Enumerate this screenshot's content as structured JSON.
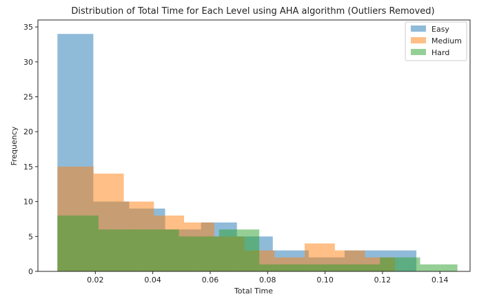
{
  "chart_data": {
    "type": "histogram",
    "title": "Distribution of Total Time for Each Level using AHA algorithm (Outliers Removed)",
    "xlabel": "Total Time",
    "ylabel": "Frequency",
    "xlim": [
      0.0,
      0.1505
    ],
    "ylim": [
      0,
      36
    ],
    "xticks": [
      0.02,
      0.04,
      0.06,
      0.08,
      0.1,
      0.12,
      0.14
    ],
    "xtick_labels": [
      "0.02",
      "0.04",
      "0.06",
      "0.08",
      "0.10",
      "0.12",
      "0.14"
    ],
    "yticks": [
      0,
      5,
      10,
      15,
      20,
      25,
      30,
      35
    ],
    "ytick_labels": [
      "0",
      "5",
      "10",
      "15",
      "20",
      "25",
      "30",
      "35"
    ],
    "legend_position": "top-right",
    "series": [
      {
        "name": "Easy",
        "color": "#1f77b4",
        "alpha": 0.5,
        "edges": [
          0.0068,
          0.0193,
          0.0318,
          0.0443,
          0.0568,
          0.0693,
          0.0818,
          0.0943,
          0.1068,
          0.1193,
          0.1318
        ],
        "counts": [
          34,
          10,
          9,
          6,
          7,
          5,
          3,
          2,
          3,
          3
        ]
      },
      {
        "name": "Medium",
        "color": "#ff7f0e",
        "alpha": 0.5,
        "edges": [
          0.0068,
          0.0194,
          0.0299,
          0.0404,
          0.0509,
          0.0614,
          0.0719,
          0.0824,
          0.0929,
          0.1034,
          0.1139,
          0.1244
        ],
        "counts": [
          15,
          14,
          10,
          8,
          7,
          5,
          3,
          2,
          4,
          3,
          2
        ]
      },
      {
        "name": "Hard",
        "color": "#2ca02c",
        "alpha": 0.5,
        "edges": [
          0.0068,
          0.0141,
          0.0211,
          0.0281,
          0.0351,
          0.0421,
          0.0491,
          0.0561,
          0.0631,
          0.0701,
          0.0771,
          0.0841,
          0.0911,
          0.0981,
          0.1051,
          0.1121,
          0.1191,
          0.1261,
          0.1331,
          0.1401,
          0.1461
        ],
        "counts": [
          8,
          8,
          6,
          6,
          6,
          6,
          5,
          5,
          6,
          6,
          1,
          1,
          1,
          1,
          1,
          1,
          2,
          2,
          1,
          1
        ]
      }
    ]
  }
}
